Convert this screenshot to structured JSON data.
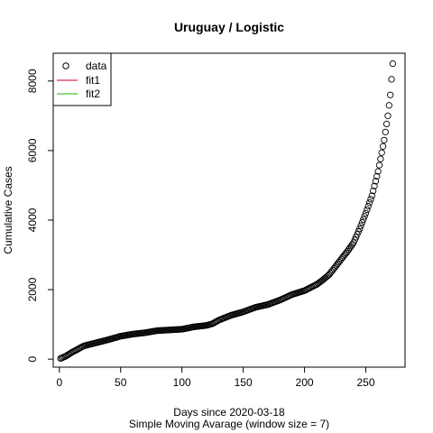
{
  "chart_data": {
    "type": "scatter",
    "title": "Uruguay / Logistic",
    "xlabel": "Days since 2020-03-18",
    "xlabel2": "Simple Moving Avarage (window size = 7)",
    "ylabel": "Cumulative Cases",
    "xlim": [
      -5,
      282
    ],
    "ylim": [
      -230,
      8800
    ],
    "xticks": [
      0,
      50,
      100,
      150,
      200,
      250
    ],
    "yticks": [
      0,
      2000,
      4000,
      6000,
      8000
    ],
    "grid": false,
    "legend_position": "top-left",
    "legend": [
      {
        "label": "data",
        "type": "point",
        "color": "#000000"
      },
      {
        "label": "fit1",
        "type": "line",
        "color": "#DF536B"
      },
      {
        "label": "fit2",
        "type": "line",
        "color": "#61D04F"
      }
    ],
    "series": [
      {
        "name": "data",
        "color": "#000000",
        "anchors": [
          [
            1,
            20
          ],
          [
            5,
            80
          ],
          [
            10,
            190
          ],
          [
            20,
            380
          ],
          [
            30,
            470
          ],
          [
            40,
            560
          ],
          [
            50,
            660
          ],
          [
            60,
            720
          ],
          [
            70,
            760
          ],
          [
            80,
            820
          ],
          [
            90,
            840
          ],
          [
            100,
            860
          ],
          [
            110,
            930
          ],
          [
            120,
            970
          ],
          [
            125,
            1020
          ],
          [
            130,
            1120
          ],
          [
            140,
            1260
          ],
          [
            150,
            1360
          ],
          [
            160,
            1490
          ],
          [
            170,
            1570
          ],
          [
            180,
            1700
          ],
          [
            190,
            1860
          ],
          [
            200,
            1970
          ],
          [
            210,
            2150
          ],
          [
            215,
            2280
          ],
          [
            220,
            2430
          ],
          [
            225,
            2650
          ],
          [
            230,
            2880
          ],
          [
            235,
            3100
          ],
          [
            240,
            3350
          ],
          [
            245,
            3750
          ],
          [
            250,
            4200
          ],
          [
            255,
            4700
          ],
          [
            260,
            5400
          ],
          [
            265,
            6300
          ],
          [
            268,
            7000
          ],
          [
            270,
            7600
          ],
          [
            272,
            8500
          ]
        ]
      }
    ]
  }
}
